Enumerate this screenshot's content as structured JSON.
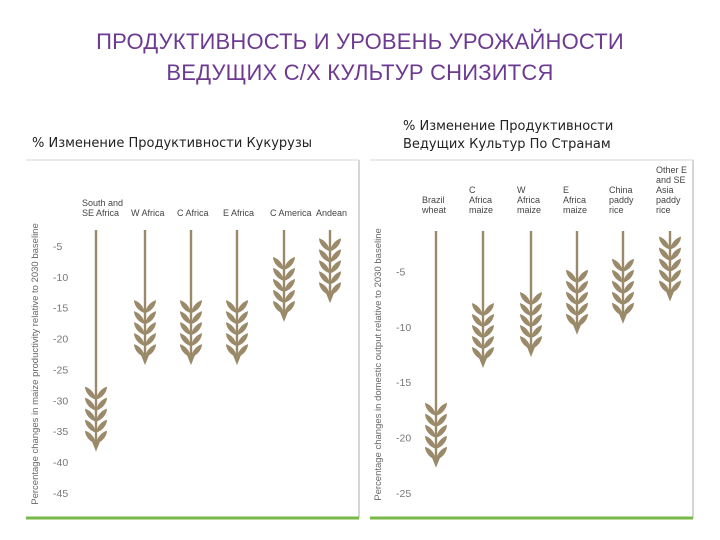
{
  "title_line1": "ПРОДУКТИВНОСТЬ И УРОВЕНЬ УРОЖАЙНОСТИ",
  "title_line2": "ВЕДУЩИХ С/Х КУЛЬТУР СНИЗИТСЯ",
  "colors": {
    "title": "#6d3a91",
    "bar": "#9b8a6a",
    "grain": "#9b8a6a",
    "grid": "#d5d5d5",
    "base": "#79b94a"
  },
  "chart_data": [
    {
      "type": "bar",
      "title": "% Изменение Продуктивности Кукурузы",
      "ylabel": "Percentage changes in maize productivity relative to 2030 baseline",
      "ticks": [
        "-5",
        "-10",
        "-15",
        "-20",
        "-25",
        "-30",
        "-35",
        "-40",
        "-45"
      ],
      "ylim": [
        -45,
        0
      ],
      "categories": [
        "South and SE Africa",
        "W Africa",
        "C Africa",
        "E Africa",
        "C America",
        "Andean"
      ],
      "values": [
        -37,
        -23,
        -23,
        -23,
        -16,
        -13
      ]
    },
    {
      "type": "bar",
      "title": "% Изменение Продуктивности Ведущих Культур По Странам",
      "ylabel": "Percentage changes in domestic output relative to 2030 baseline",
      "ticks": [
        "-5",
        "-10",
        "-15",
        "-20",
        "-25"
      ],
      "ylim": [
        -25,
        0
      ],
      "categories": [
        "Brazil wheat",
        "C Africa maize",
        "W Africa maize",
        "E Africa maize",
        "China paddy rice",
        "Other E and SE Asia paddy rice"
      ],
      "values": [
        -22,
        -13,
        -12,
        -10,
        -9,
        -7
      ]
    }
  ]
}
